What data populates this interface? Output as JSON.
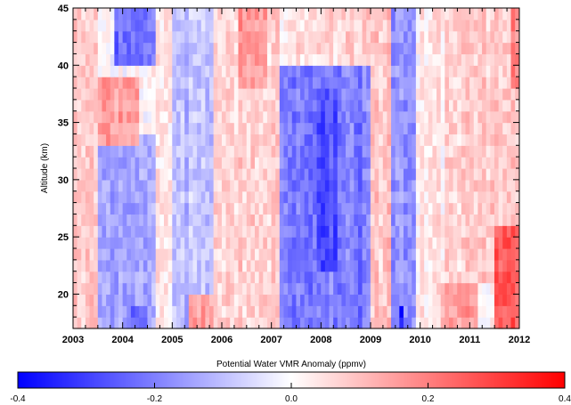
{
  "chart_data": {
    "type": "heatmap",
    "title": "",
    "xlabel": "",
    "ylabel": "Altitude (km)",
    "xlim": [
      2003.0,
      2012.0
    ],
    "ylim": [
      17.0,
      45.0
    ],
    "x_ticks": [
      "2003",
      "2004",
      "2005",
      "2006",
      "2007",
      "2008",
      "2009",
      "2010",
      "2011",
      "2012"
    ],
    "y_ticks": [
      "20",
      "25",
      "30",
      "35",
      "40",
      "45"
    ],
    "x_step_years": 0.0833,
    "y_step_km": 1.0,
    "colorbar": {
      "label": "Potential Water VMR Anomaly (ppmv)",
      "range": [
        -0.4,
        0.4
      ],
      "ticks": [
        "-0.4",
        "-0.2",
        "0.0",
        "0.2",
        "0.4"
      ],
      "colors": {
        "low": "#0000ff",
        "mid": "#ffffff",
        "high": "#ff0000"
      }
    },
    "anomaly_features": [
      {
        "t_start": 2003.0,
        "t_end": 2003.5,
        "z_low": 17.0,
        "z_high": 45.0,
        "value": 0.08
      },
      {
        "t_start": 2003.5,
        "t_end": 2004.7,
        "z_low": 17.0,
        "z_high": 34.0,
        "value": -0.14
      },
      {
        "t_start": 2003.5,
        "t_end": 2004.3,
        "z_low": 33.0,
        "z_high": 39.0,
        "value": 0.16
      },
      {
        "t_start": 2003.8,
        "t_end": 2004.7,
        "z_low": 40.0,
        "z_high": 45.0,
        "value": -0.22
      },
      {
        "t_start": 2004.2,
        "t_end": 2004.5,
        "z_low": 17.0,
        "z_high": 19.0,
        "value": -0.25
      },
      {
        "t_start": 2004.7,
        "t_end": 2005.3,
        "z_low": 17.0,
        "z_high": 45.0,
        "value": 0.04
      },
      {
        "t_start": 2005.0,
        "t_end": 2005.8,
        "z_low": 17.0,
        "z_high": 45.0,
        "value": -0.1
      },
      {
        "t_start": 2005.3,
        "t_end": 2006.0,
        "z_low": 17.0,
        "z_high": 20.0,
        "value": 0.14
      },
      {
        "t_start": 2005.8,
        "t_end": 2007.2,
        "z_low": 17.0,
        "z_high": 45.0,
        "value": 0.07
      },
      {
        "t_start": 2006.3,
        "t_end": 2006.9,
        "z_low": 38.0,
        "z_high": 45.0,
        "value": 0.16
      },
      {
        "t_start": 2006.8,
        "t_end": 2007.3,
        "z_low": 17.0,
        "z_high": 30.0,
        "value": 0.08
      },
      {
        "t_start": 2007.2,
        "t_end": 2009.0,
        "z_low": 17.0,
        "z_high": 40.5,
        "value": -0.2
      },
      {
        "t_start": 2007.9,
        "t_end": 2008.3,
        "z_low": 22.0,
        "z_high": 38.0,
        "value": -0.28
      },
      {
        "t_start": 2008.7,
        "t_end": 2008.9,
        "z_low": 17.0,
        "z_high": 37.0,
        "value": -0.22
      },
      {
        "t_start": 2007.3,
        "t_end": 2009.2,
        "z_low": 40.5,
        "z_high": 45.0,
        "value": 0.06
      },
      {
        "t_start": 2009.0,
        "t_end": 2009.5,
        "z_low": 17.0,
        "z_high": 45.0,
        "value": 0.09
      },
      {
        "t_start": 2009.4,
        "t_end": 2009.9,
        "z_low": 17.0,
        "z_high": 45.0,
        "value": -0.17
      },
      {
        "t_start": 2009.55,
        "t_end": 2009.7,
        "z_low": 17.0,
        "z_high": 19.0,
        "value": -0.38
      },
      {
        "t_start": 2009.9,
        "t_end": 2010.5,
        "z_low": 17.0,
        "z_high": 45.0,
        "value": 0.03
      },
      {
        "t_start": 2010.4,
        "t_end": 2011.2,
        "z_low": 17.0,
        "z_high": 21.0,
        "value": 0.15
      },
      {
        "t_start": 2010.5,
        "t_end": 2012.0,
        "z_low": 21.0,
        "z_high": 45.0,
        "value": 0.07
      },
      {
        "t_start": 2011.5,
        "t_end": 2012.0,
        "z_low": 17.0,
        "z_high": 26.0,
        "value": 0.25
      },
      {
        "t_start": 2011.8,
        "t_end": 2012.0,
        "z_low": 38.0,
        "z_high": 45.0,
        "value": 0.18
      }
    ]
  }
}
